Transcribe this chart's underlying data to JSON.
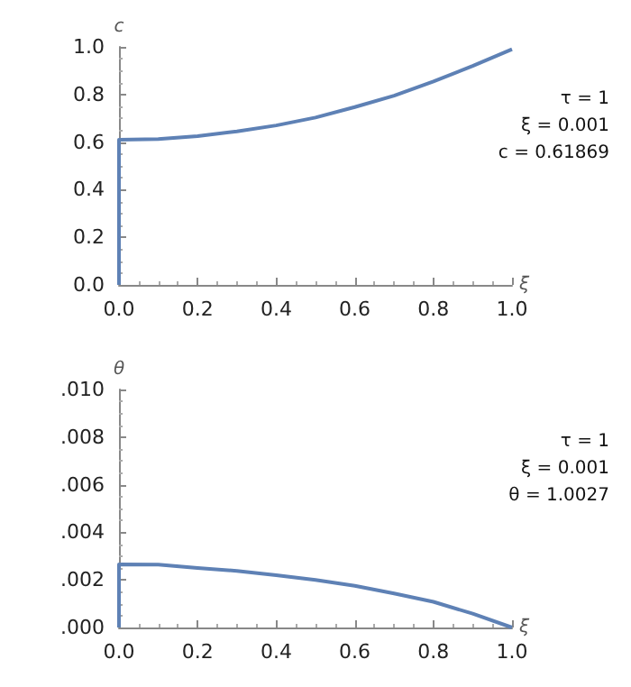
{
  "chart_data": [
    {
      "type": "line",
      "xlabel": "ξ",
      "ylabel": "c",
      "annotations": [
        "τ = 1",
        "ξ = 0.001",
        "c = 0.61869"
      ],
      "xlim": [
        0,
        1
      ],
      "xticks": [
        {
          "value": 0,
          "label": "0.0"
        },
        {
          "value": 0.2,
          "label": "0.2"
        },
        {
          "value": 0.4,
          "label": "0.4"
        },
        {
          "value": 0.6,
          "label": "0.6"
        },
        {
          "value": 0.8,
          "label": "0.8"
        },
        {
          "value": 1,
          "label": "1.0"
        }
      ],
      "ylim": [
        0,
        1
      ],
      "yticks": [
        {
          "value": 0,
          "label": "0.0"
        },
        {
          "value": 0.2,
          "label": "0.2"
        },
        {
          "value": 0.4,
          "label": "0.4"
        },
        {
          "value": 0.6,
          "label": "0.6"
        },
        {
          "value": 0.8,
          "label": "0.8"
        },
        {
          "value": 1,
          "label": "1.0"
        }
      ],
      "grid": false,
      "marker": "none",
      "line_style": "solid",
      "series": [
        {
          "color": "#5e81b5",
          "x": [
            0,
            0,
            0.1,
            0.2,
            0.3,
            0.4,
            0.5,
            0.6,
            0.7,
            0.8,
            0.9,
            1
          ],
          "values": [
            0,
            0.61,
            0.613,
            0.625,
            0.645,
            0.67,
            0.703,
            0.747,
            0.795,
            0.855,
            0.92,
            0.99
          ]
        }
      ]
    },
    {
      "type": "line",
      "xlabel": "ξ",
      "ylabel": "θ",
      "annotations": [
        "τ = 1",
        "ξ = 0.001",
        "θ = 1.0027"
      ],
      "xlim": [
        0,
        1
      ],
      "xticks": [
        {
          "value": 0,
          "label": "0.0"
        },
        {
          "value": 0.2,
          "label": "0.2"
        },
        {
          "value": 0.4,
          "label": "0.4"
        },
        {
          "value": 0.6,
          "label": "0.6"
        },
        {
          "value": 0.8,
          "label": "0.8"
        },
        {
          "value": 1,
          "label": "1.0"
        }
      ],
      "ylim": [
        0,
        0.01
      ],
      "yticks": [
        {
          "value": 0,
          "label": ".000"
        },
        {
          "value": 0.002,
          "label": ".002"
        },
        {
          "value": 0.004,
          "label": ".004"
        },
        {
          "value": 0.006,
          "label": ".006"
        },
        {
          "value": 0.008,
          "label": ".008"
        },
        {
          "value": 0.01,
          "label": ".010"
        }
      ],
      "grid": false,
      "marker": "none",
      "line_style": "solid",
      "series": [
        {
          "color": "#5e81b5",
          "x": [
            0,
            0,
            0.1,
            0.2,
            0.3,
            0.4,
            0.5,
            0.6,
            0.7,
            0.8,
            0.9,
            1
          ],
          "values": [
            0,
            0.00265,
            0.00264,
            0.0025,
            0.00238,
            0.0022,
            0.002,
            0.00175,
            0.00143,
            0.00108,
            0.00058,
            0
          ]
        }
      ]
    }
  ]
}
